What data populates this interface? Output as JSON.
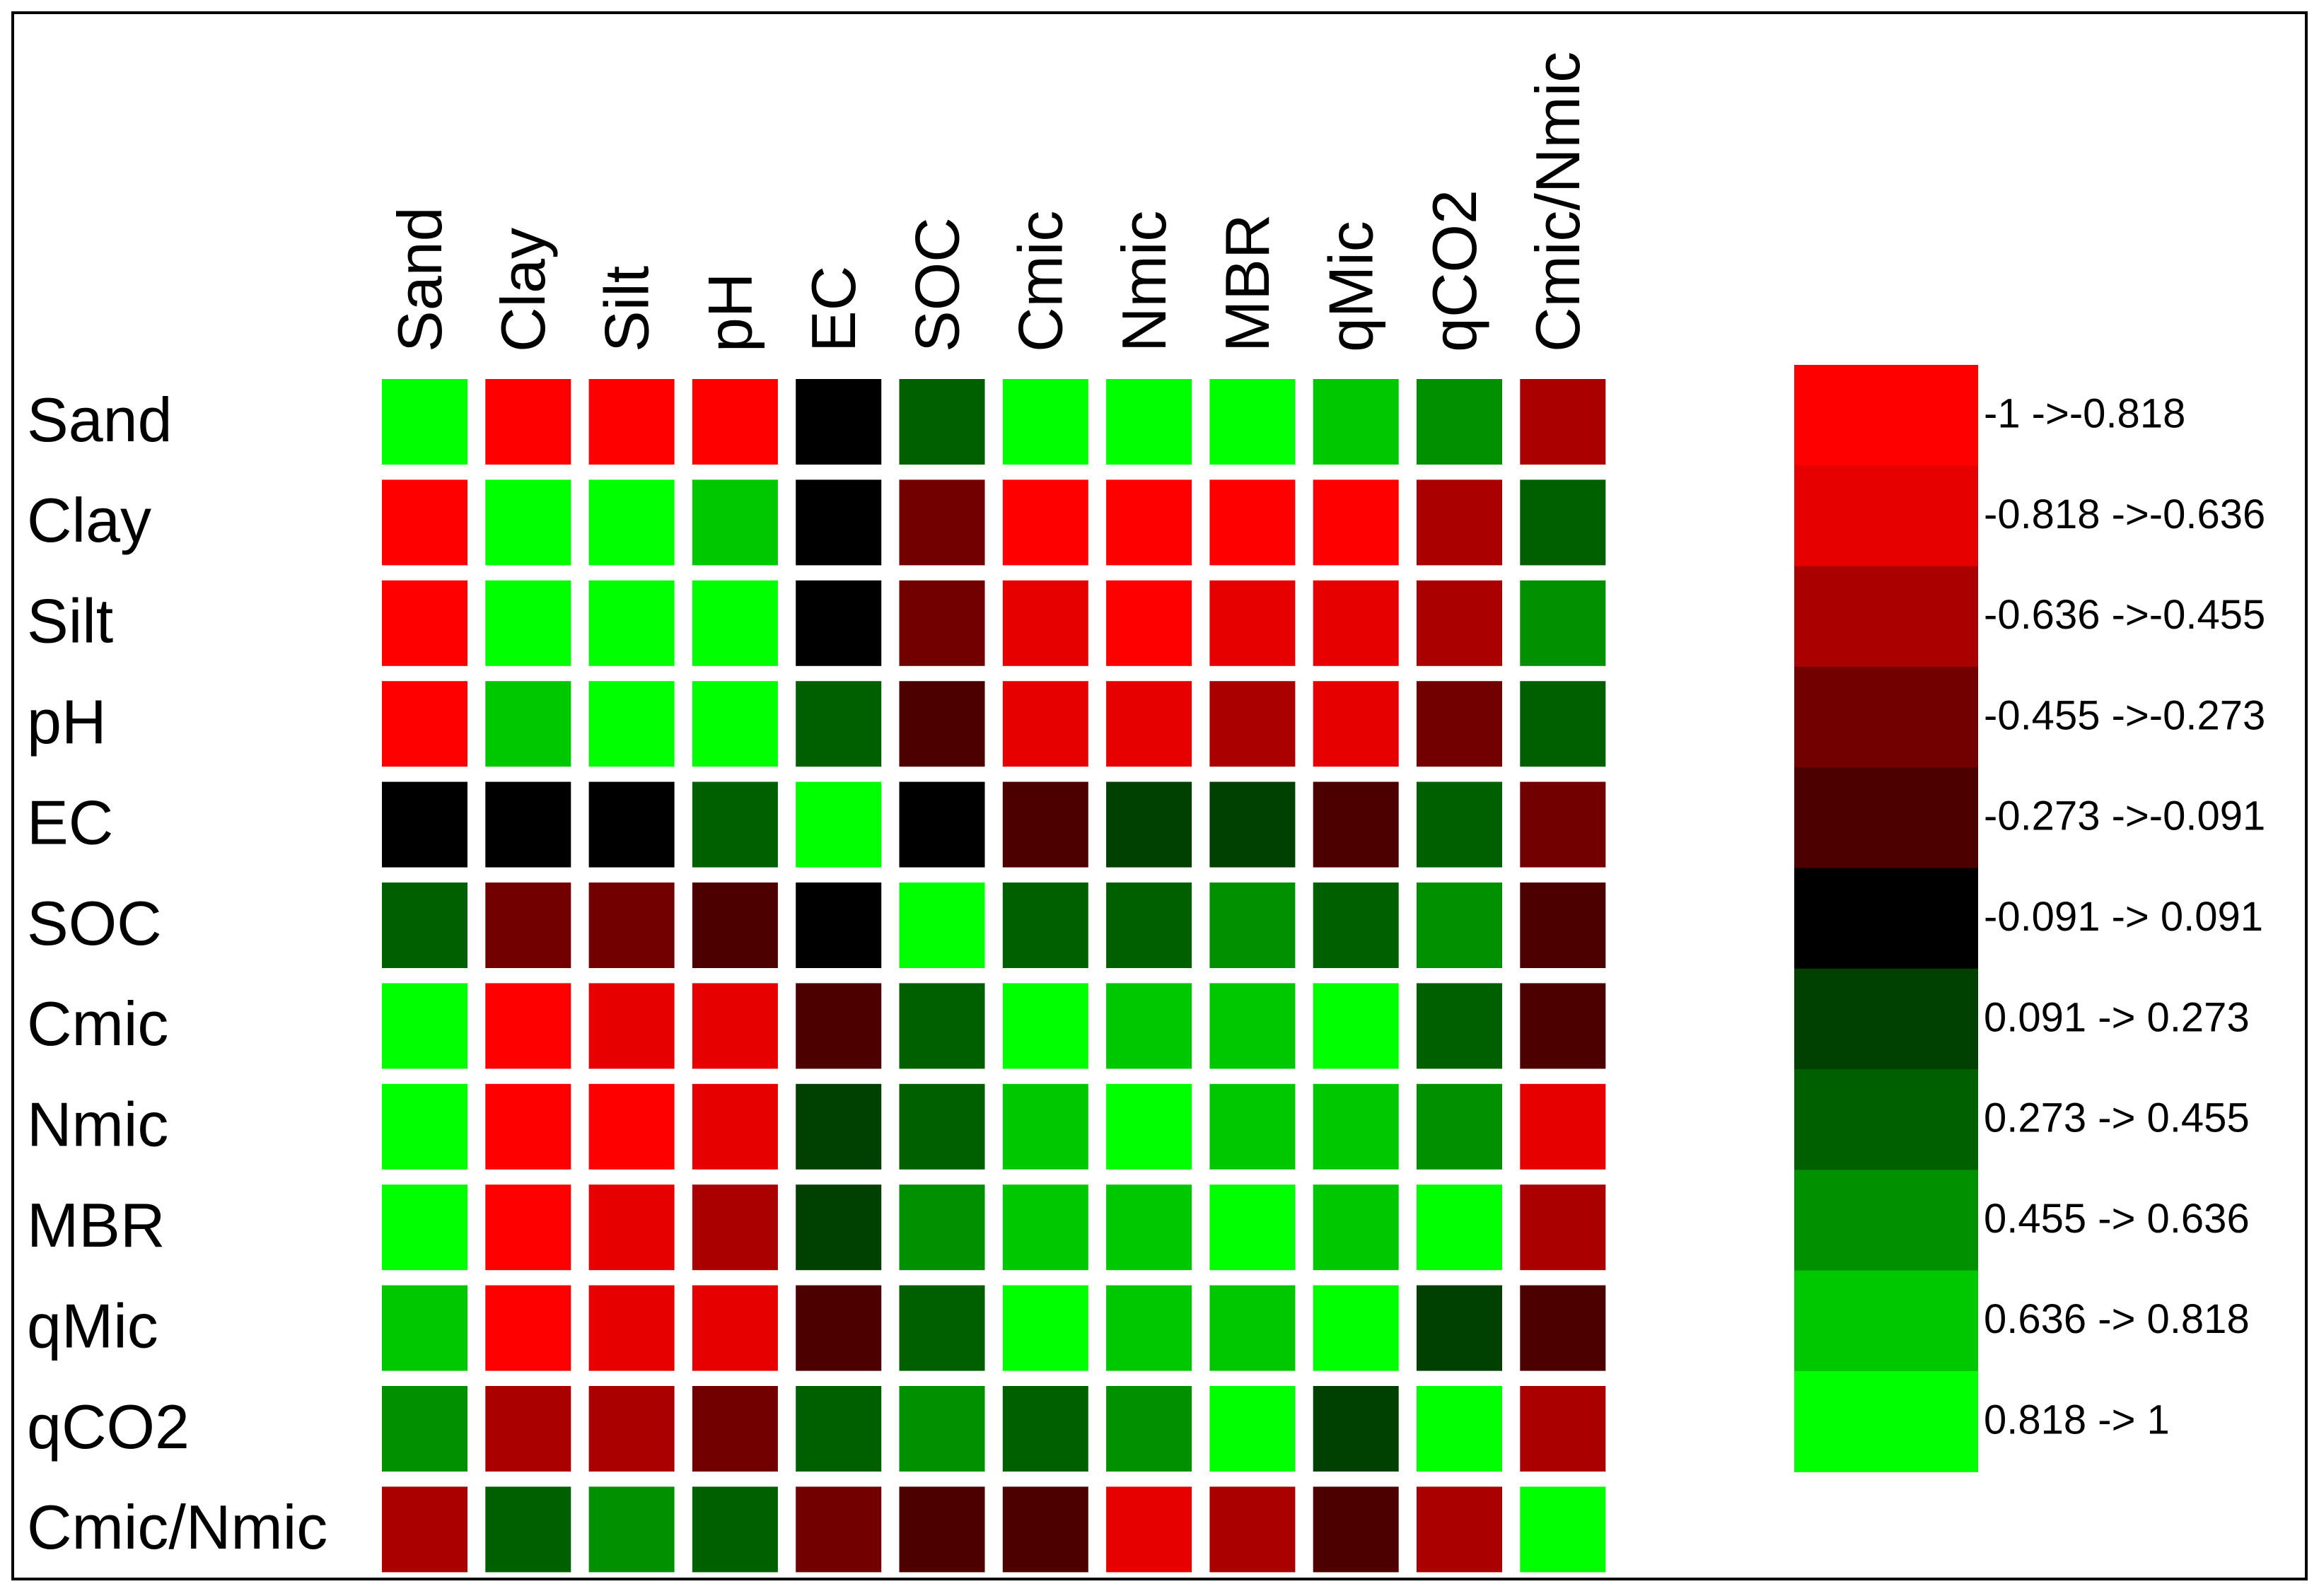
{
  "chart_data": {
    "type": "heatmap",
    "x": [
      "Sand",
      "Clay",
      "Silt",
      "pH",
      "EC",
      "SOC",
      "Cmic",
      "Nmic",
      "MBR",
      "qMic",
      "qCO2",
      "Cmic/Nmic"
    ],
    "y": [
      "Sand",
      "Clay",
      "Silt",
      "pH",
      "EC",
      "SOC",
      "Cmic",
      "Nmic",
      "MBR",
      "qMic",
      "qCO2",
      "Cmic/Nmic"
    ],
    "values": [
      [
        1,
        -0.909,
        -0.909,
        -0.909,
        0,
        0.364,
        0.909,
        0.909,
        0.909,
        0.727,
        0.545,
        -0.545
      ],
      [
        -0.909,
        1,
        0.909,
        0.727,
        0,
        -0.364,
        -0.909,
        -0.909,
        -0.909,
        -0.909,
        -0.545,
        0.364
      ],
      [
        -0.909,
        0.909,
        1,
        0.909,
        0,
        -0.364,
        -0.727,
        -0.909,
        -0.727,
        -0.727,
        -0.545,
        0.545
      ],
      [
        -0.909,
        0.727,
        0.909,
        1,
        0.364,
        -0.182,
        -0.727,
        -0.727,
        -0.545,
        -0.727,
        -0.364,
        0.364
      ],
      [
        0,
        0,
        0,
        0.364,
        1,
        0,
        -0.182,
        0.182,
        0.182,
        -0.182,
        0.364,
        -0.364
      ],
      [
        0.364,
        -0.364,
        -0.364,
        -0.182,
        0,
        1,
        0.364,
        0.364,
        0.545,
        0.364,
        0.545,
        -0.182
      ],
      [
        0.909,
        -0.909,
        -0.727,
        -0.727,
        -0.182,
        0.364,
        1,
        0.727,
        0.727,
        0.909,
        0.364,
        -0.182
      ],
      [
        0.909,
        -0.909,
        -0.909,
        -0.727,
        0.182,
        0.364,
        0.727,
        1,
        0.727,
        0.727,
        0.545,
        -0.727
      ],
      [
        0.909,
        -0.909,
        -0.727,
        -0.545,
        0.182,
        0.545,
        0.727,
        0.727,
        1,
        0.727,
        0.909,
        -0.545
      ],
      [
        0.727,
        -0.909,
        -0.727,
        -0.727,
        -0.182,
        0.364,
        0.909,
        0.727,
        0.727,
        1,
        0.182,
        -0.182
      ],
      [
        0.545,
        -0.545,
        -0.545,
        -0.364,
        0.364,
        0.545,
        0.364,
        0.545,
        0.909,
        0.182,
        1,
        -0.545
      ],
      [
        -0.545,
        0.364,
        0.545,
        0.364,
        -0.364,
        -0.182,
        -0.182,
        -0.727,
        -0.545,
        -0.182,
        -0.545,
        1
      ]
    ],
    "legend": [
      {
        "label": "-1 ->-0.818",
        "color": "#ff0000",
        "from": -1,
        "to": -0.818
      },
      {
        "label": "-0.818 ->-0.636",
        "color": "#e60000",
        "from": -0.818,
        "to": -0.636
      },
      {
        "label": "-0.636 ->-0.455",
        "color": "#aa0000",
        "from": -0.636,
        "to": -0.455
      },
      {
        "label": "-0.455 ->-0.273",
        "color": "#730000",
        "from": -0.455,
        "to": -0.273
      },
      {
        "label": "-0.273 ->-0.091",
        "color": "#4d0000",
        "from": -0.273,
        "to": -0.091
      },
      {
        "label": "-0.091 -> 0.091",
        "color": "#000000",
        "from": -0.091,
        "to": 0.091
      },
      {
        "label": "0.091 -> 0.273",
        "color": "#004000",
        "from": 0.091,
        "to": 0.273
      },
      {
        "label": "0.273 -> 0.455",
        "color": "#006000",
        "from": 0.273,
        "to": 0.455
      },
      {
        "label": "0.455 -> 0.636",
        "color": "#009000",
        "from": 0.455,
        "to": 0.636
      },
      {
        "label": "0.636 -> 0.818",
        "color": "#00c800",
        "from": 0.636,
        "to": 0.818
      },
      {
        "label": "0.818 -> 1",
        "color": "#00ff00",
        "from": 0.818,
        "to": 1
      }
    ]
  }
}
